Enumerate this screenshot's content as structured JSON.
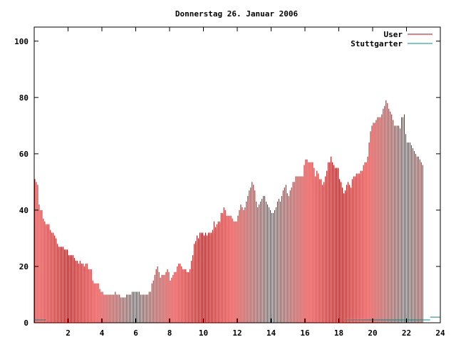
{
  "chart_data": {
    "type": "bar",
    "title": "Donnerstag 26. Januar 2006",
    "xlabel": "",
    "ylabel": "",
    "xlim": [
      0,
      24
    ],
    "ylim": [
      0,
      105
    ],
    "x_ticks": [
      2,
      4,
      6,
      8,
      10,
      12,
      14,
      16,
      18,
      20,
      22,
      24
    ],
    "y_ticks": [
      0,
      20,
      40,
      60,
      80,
      100
    ],
    "grid": false,
    "legend_position": "top-right",
    "bars_per_hour": 12,
    "series": [
      {
        "name": "User",
        "color": "#cc0000",
        "values": [
          51,
          50,
          49,
          42,
          40,
          40,
          37,
          36,
          35,
          35,
          35,
          33,
          32,
          32,
          31,
          30,
          28,
          27,
          27,
          27,
          27,
          26,
          26,
          26,
          24,
          24,
          24,
          24,
          23,
          22,
          22,
          21,
          22,
          21,
          21,
          20,
          21,
          21,
          19,
          19,
          19,
          15,
          14,
          14,
          14,
          14,
          12,
          11,
          11,
          10,
          10,
          10,
          10,
          10,
          10,
          10,
          10,
          11,
          10,
          10,
          10,
          9,
          9,
          9,
          9,
          10,
          10,
          10,
          10,
          11,
          11,
          11,
          11,
          11,
          11,
          10,
          10,
          10,
          10,
          10,
          10,
          11,
          11,
          14,
          15,
          17,
          19,
          20,
          18,
          16,
          17,
          17,
          17,
          18,
          19,
          18,
          15,
          16,
          17,
          18,
          18,
          20,
          21,
          21,
          20,
          19,
          19,
          19,
          18,
          18,
          19,
          22,
          24,
          28,
          29,
          31,
          30,
          32,
          32,
          32,
          31,
          32,
          31,
          32,
          32,
          32,
          33,
          36,
          34,
          35,
          36,
          36,
          39,
          39,
          41,
          40,
          38,
          38,
          38,
          38,
          37,
          36,
          36,
          36,
          38,
          40,
          42,
          41,
          40,
          41,
          43,
          45,
          47,
          48,
          50,
          49,
          47,
          43,
          41,
          42,
          43,
          44,
          45,
          45,
          43,
          42,
          41,
          40,
          39,
          39,
          40,
          41,
          43,
          44,
          43,
          45,
          47,
          48,
          49,
          46,
          45,
          47,
          48,
          50,
          50,
          52,
          52,
          52,
          52,
          52,
          52,
          56,
          58,
          58,
          57,
          57,
          57,
          57,
          55,
          52,
          54,
          53,
          51,
          51,
          49,
          50,
          52,
          54,
          57,
          57,
          59,
          57,
          56,
          55,
          55,
          55,
          51,
          50,
          48,
          46,
          47,
          49,
          50,
          49,
          48,
          51,
          52,
          52,
          53,
          53,
          53,
          54,
          54,
          56,
          57,
          57,
          59,
          64,
          68,
          70,
          71,
          71,
          72,
          73,
          73,
          73,
          74,
          76,
          77,
          79,
          78,
          76,
          75,
          74,
          72,
          70,
          70,
          70,
          70,
          69,
          73,
          73,
          74,
          67,
          64,
          64,
          64,
          63,
          62,
          61,
          60,
          59,
          59,
          58,
          57,
          56
        ]
      },
      {
        "name": "Stuttgarter",
        "color": "#008b8b",
        "segments": [
          {
            "x_from": 0,
            "x_to": 0.7,
            "value": 1
          },
          {
            "x_from": 18.3,
            "x_to": 23.4,
            "value": 1
          },
          {
            "x_from": 23.4,
            "x_to": 24,
            "value": 2
          }
        ]
      }
    ]
  }
}
